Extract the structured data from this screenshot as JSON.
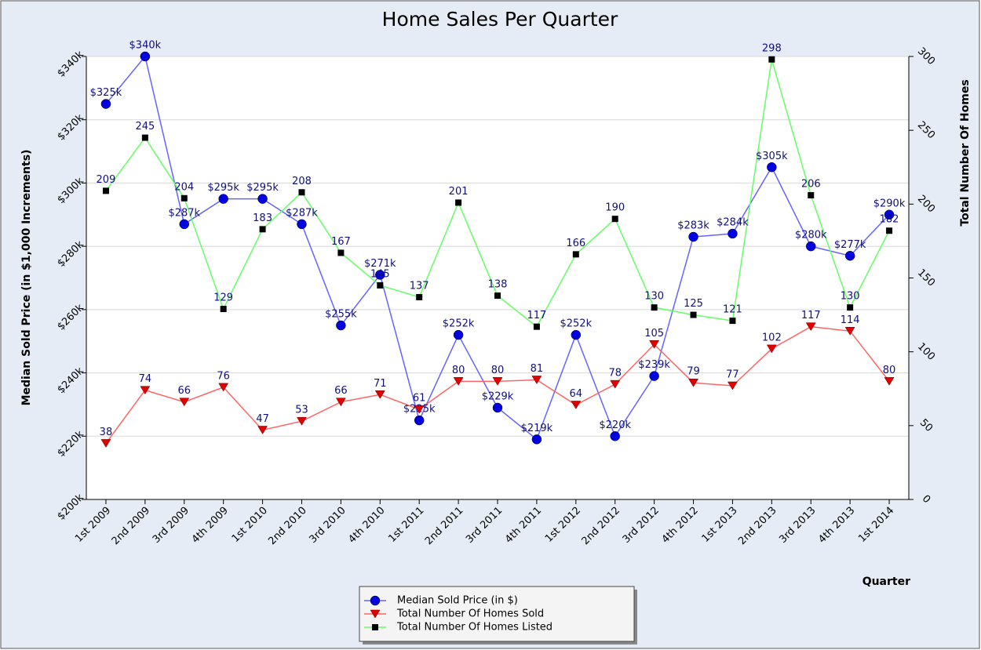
{
  "chart_data": {
    "type": "line",
    "title": "Home Sales Per Quarter",
    "x_label": "Quarter",
    "y_label": "Median Sold Price (in $1,000 Increments)",
    "y2_label": "Total Number Of Homes",
    "categories": [
      "1st 2009",
      "2nd 2009",
      "3rd 2009",
      "4th 2009",
      "1st 2010",
      "2nd 2010",
      "3rd 2010",
      "4th 2010",
      "1st 2011",
      "2nd 2011",
      "3rd 2011",
      "4th 2011",
      "1st 2012",
      "2nd 2012",
      "3rd 2012",
      "4th 2012",
      "1st 2013",
      "2nd 2013",
      "3rd 2013",
      "4th 2013",
      "1st 2014"
    ],
    "ylim": [
      200,
      340
    ],
    "yticks": [
      {
        "value": 200,
        "label": "$200k"
      },
      {
        "value": 220,
        "label": "$220k"
      },
      {
        "value": 240,
        "label": "$240k"
      },
      {
        "value": 260,
        "label": "$260k"
      },
      {
        "value": 280,
        "label": "$280k"
      },
      {
        "value": 300,
        "label": "$300k"
      },
      {
        "value": 320,
        "label": "$320k"
      },
      {
        "value": 340,
        "label": "$340k"
      }
    ],
    "y2lim": [
      0,
      300
    ],
    "y2ticks": [
      0,
      50,
      100,
      150,
      200,
      250,
      300
    ],
    "grid": true,
    "legend": "bottom",
    "series": [
      {
        "name": "Median Sold Price (in $)",
        "color": "#6464ff",
        "marker_color": "#0000e0",
        "marker": "circle",
        "values": [
          325,
          340,
          287,
          295,
          295,
          287,
          255,
          271,
          225,
          252,
          229,
          219,
          252,
          220,
          239,
          283,
          284,
          305,
          280,
          277,
          290
        ],
        "value_labels": [
          "$325k",
          "$340k",
          "$287k",
          "$295k",
          "$295k",
          "$287k",
          "$255k",
          "$271k",
          "$225k",
          "$252k",
          "$229k",
          "$219k",
          "$252k",
          "$220k",
          "$239k",
          "$283k",
          "$284k",
          "$305k",
          "$280k",
          "$277k",
          "$290k"
        ]
      },
      {
        "name": "Total Number Of Homes Sold",
        "color": "#ff6464",
        "marker_color": "#e00000",
        "marker": "triangle-down",
        "axis": "y2",
        "values": [
          38,
          74,
          66,
          76,
          47,
          53,
          66,
          71,
          61,
          80,
          80,
          81,
          64,
          78,
          105,
          79,
          77,
          102,
          117,
          114,
          80
        ]
      },
      {
        "name": "Total Number Of Homes Listed",
        "color": "#64ff64",
        "marker_color": "#000000",
        "marker": "square",
        "axis": "y2",
        "values": [
          209,
          245,
          204,
          129,
          183,
          208,
          167,
          145,
          137,
          201,
          138,
          117,
          166,
          190,
          130,
          125,
          121,
          298,
          206,
          130,
          182
        ]
      }
    ]
  }
}
